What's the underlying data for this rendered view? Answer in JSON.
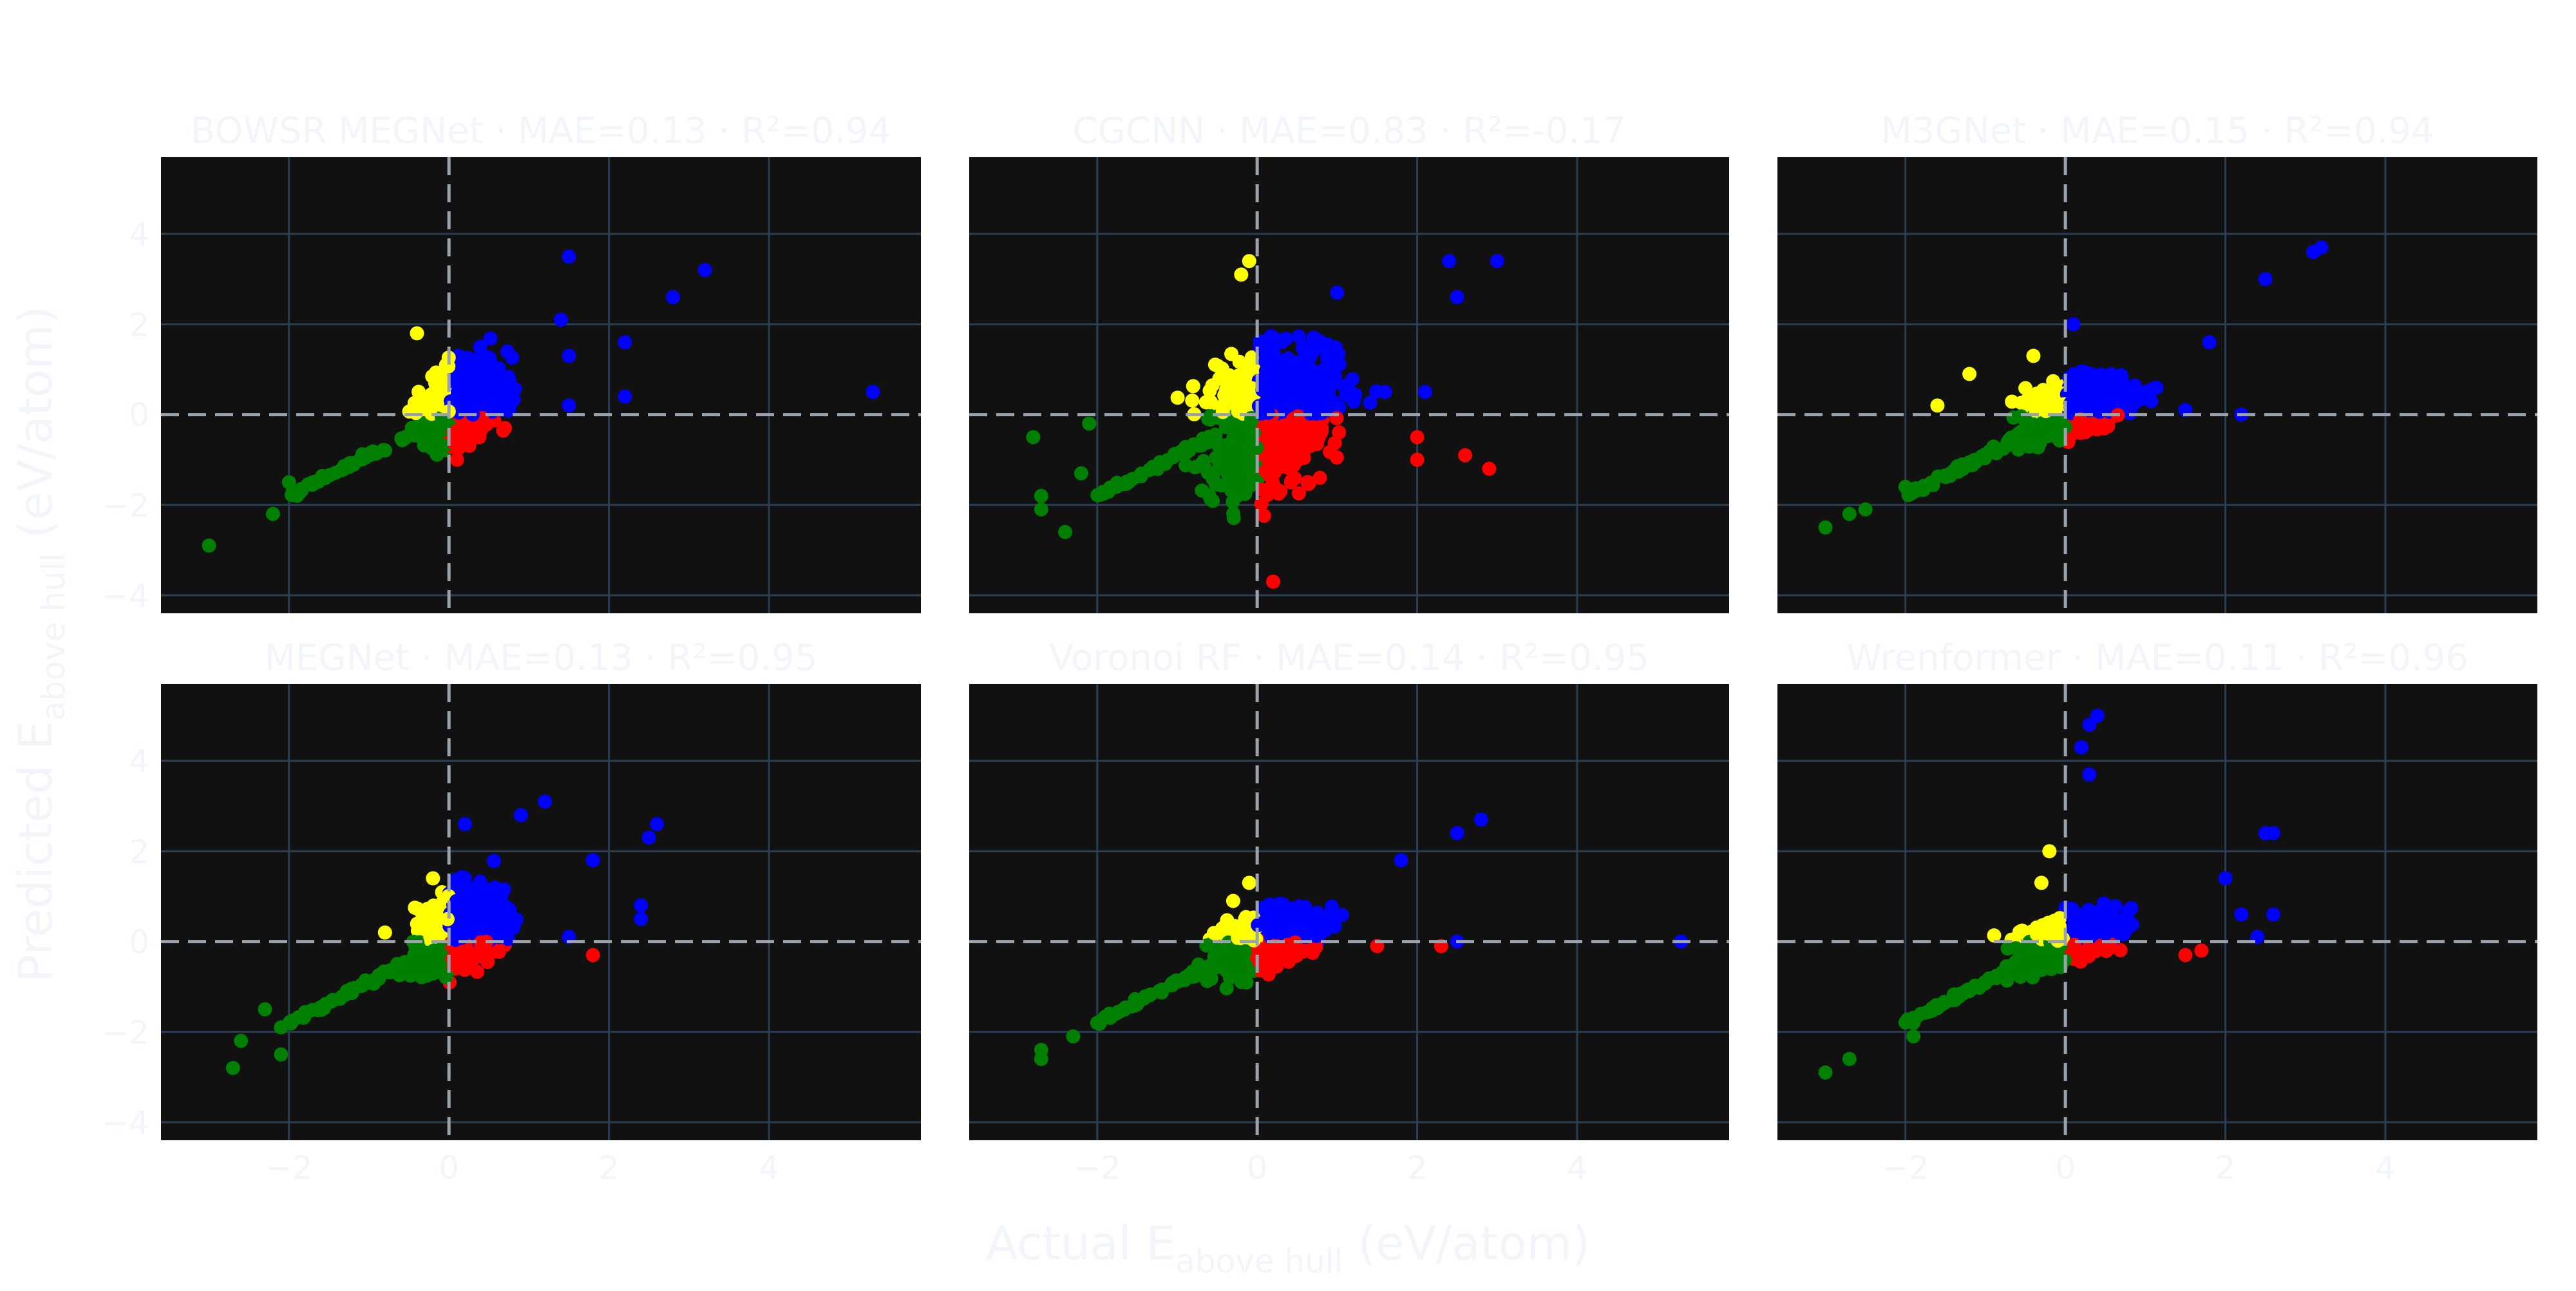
{
  "figure": {
    "xlabel_main": "Actual E",
    "xlabel_sub": "above hull",
    "xlabel_unit": " (eV/atom)",
    "ylabel_main": "Predicted E",
    "ylabel_sub": "above hull",
    "ylabel_unit": " (eV/atom)",
    "colors": {
      "plot_bg": "#111111",
      "grid": "#2a3f54",
      "text": "#f2f5fa",
      "zero_line": "#9aa3ad",
      "true_positive": "#0000ff",
      "false_negative": "#ffff00",
      "true_negative": "#008000",
      "false_positive": "#ff0000"
    }
  },
  "chart_data": [
    {
      "type": "scatter",
      "title": "BOWSR MEGNet · MAE=0.13 · R²=0.94",
      "xlim": [
        -3.6,
        5.9
      ],
      "ylim": [
        -4.4,
        5.7
      ],
      "xticks": [
        "−2",
        "0",
        "2",
        "4"
      ],
      "yticks": [
        "−4",
        "−2",
        "0",
        "2",
        "4"
      ],
      "outliers": [
        [
          -3.0,
          -2.9
        ],
        [
          -2.2,
          -2.2
        ],
        [
          -2.0,
          -1.5
        ],
        [
          -1.9,
          -1.8
        ],
        [
          1.5,
          3.5
        ],
        [
          2.8,
          2.6
        ],
        [
          3.2,
          3.2
        ],
        [
          2.2,
          1.6
        ],
        [
          2.2,
          0.4
        ],
        [
          1.5,
          1.3
        ],
        [
          1.5,
          0.2
        ],
        [
          1.4,
          2.1
        ],
        [
          5.3,
          0.5
        ],
        [
          0.1,
          -1.0
        ],
        [
          0.7,
          -0.3
        ],
        [
          -0.4,
          1.8
        ]
      ],
      "cluster": {
        "x_spread": [
          -0.8,
          1.2
        ],
        "pos_max": 2.2,
        "neg_min": -1.3
      }
    },
    {
      "type": "scatter",
      "title": "CGCNN · MAE=0.83 · R²=-0.17",
      "xlim": [
        -3.6,
        5.9
      ],
      "ylim": [
        -4.4,
        5.7
      ],
      "xticks": [
        "−2",
        "0",
        "2",
        "4"
      ],
      "yticks": [
        "−4",
        "−2",
        "0",
        "2",
        "4"
      ],
      "outliers": [
        [
          -2.8,
          -0.5
        ],
        [
          -2.7,
          -1.8
        ],
        [
          -2.7,
          -2.1
        ],
        [
          -2.4,
          -2.6
        ],
        [
          -2.1,
          -0.2
        ],
        [
          -2.2,
          -1.3
        ],
        [
          2.4,
          3.4
        ],
        [
          2.5,
          2.6
        ],
        [
          3.0,
          3.4
        ],
        [
          2.9,
          -1.2
        ],
        [
          2.6,
          -0.9
        ],
        [
          2.0,
          -0.5
        ],
        [
          2.0,
          -1.0
        ],
        [
          2.1,
          0.5
        ],
        [
          0.2,
          -3.7
        ],
        [
          -0.2,
          3.1
        ],
        [
          -0.1,
          3.4
        ],
        [
          1.0,
          2.7
        ],
        [
          1.6,
          0.5
        ]
      ],
      "cluster": {
        "x_spread": [
          -1.4,
          1.8
        ],
        "pos_max": 3.0,
        "neg_min": -3.5
      }
    },
    {
      "type": "scatter",
      "title": "M3GNet · MAE=0.15 · R²=0.94",
      "xlim": [
        -3.6,
        5.9
      ],
      "ylim": [
        -4.4,
        5.7
      ],
      "xticks": [
        "−2",
        "0",
        "2",
        "4"
      ],
      "yticks": [
        "−4",
        "−2",
        "0",
        "2",
        "4"
      ],
      "outliers": [
        [
          -3.0,
          -2.5
        ],
        [
          -2.7,
          -2.2
        ],
        [
          -2.5,
          -2.1
        ],
        [
          -2.0,
          -1.6
        ],
        [
          3.2,
          3.7
        ],
        [
          3.1,
          3.6
        ],
        [
          2.5,
          3.0
        ],
        [
          2.2,
          0.0
        ],
        [
          1.5,
          0.1
        ],
        [
          1.8,
          1.6
        ],
        [
          0.1,
          2.0
        ],
        [
          -1.6,
          0.2
        ],
        [
          -1.2,
          0.9
        ],
        [
          -0.4,
          1.3
        ]
      ],
      "cluster": {
        "x_spread": [
          -1.2,
          1.6
        ],
        "pos_max": 1.5,
        "neg_min": -0.9
      }
    },
    {
      "type": "scatter",
      "title": "MEGNet · MAE=0.13 · R²=0.95",
      "xlim": [
        -3.6,
        5.9
      ],
      "ylim": [
        -4.4,
        5.7
      ],
      "xticks": [
        "−2",
        "0",
        "2",
        "4"
      ],
      "yticks": [
        "−4",
        "−2",
        "0",
        "2",
        "4"
      ],
      "outliers": [
        [
          -2.7,
          -2.8
        ],
        [
          -2.6,
          -2.2
        ],
        [
          -2.1,
          -2.5
        ],
        [
          -2.1,
          -1.9
        ],
        [
          -2.3,
          -1.5
        ],
        [
          2.6,
          2.6
        ],
        [
          2.5,
          2.3
        ],
        [
          2.4,
          0.8
        ],
        [
          2.4,
          0.5
        ],
        [
          1.2,
          3.1
        ],
        [
          0.9,
          2.8
        ],
        [
          1.8,
          1.8
        ],
        [
          1.5,
          0.1
        ],
        [
          1.8,
          -0.3
        ],
        [
          0.2,
          2.6
        ],
        [
          -0.8,
          0.2
        ],
        [
          -0.2,
          1.4
        ]
      ],
      "cluster": {
        "x_spread": [
          -1.0,
          1.3
        ],
        "pos_max": 2.2,
        "neg_min": -1.2
      }
    },
    {
      "type": "scatter",
      "title": "Voronoi RF · MAE=0.14 · R²=0.95",
      "xlim": [
        -3.6,
        5.9
      ],
      "ylim": [
        -4.4,
        5.7
      ],
      "xticks": [
        "−2",
        "0",
        "2",
        "4"
      ],
      "yticks": [
        "−4",
        "−2",
        "0",
        "2",
        "4"
      ],
      "outliers": [
        [
          -2.7,
          -2.4
        ],
        [
          -2.7,
          -2.6
        ],
        [
          -2.3,
          -2.1
        ],
        [
          -2.0,
          -1.8
        ],
        [
          2.8,
          2.7
        ],
        [
          2.5,
          2.4
        ],
        [
          1.8,
          1.8
        ],
        [
          2.5,
          0.0
        ],
        [
          5.3,
          0.0
        ],
        [
          1.5,
          -0.1
        ],
        [
          2.3,
          -0.1
        ],
        [
          -0.1,
          1.3
        ],
        [
          -0.3,
          0.9
        ]
      ],
      "cluster": {
        "x_spread": [
          -1.2,
          1.5
        ],
        "pos_max": 1.2,
        "neg_min": -1.3
      }
    },
    {
      "type": "scatter",
      "title": "Wrenformer · MAE=0.11 · R²=0.96",
      "xlim": [
        -3.6,
        5.9
      ],
      "ylim": [
        -4.4,
        5.7
      ],
      "xticks": [
        "−2",
        "0",
        "2",
        "4"
      ],
      "yticks": [
        "−4",
        "−2",
        "0",
        "2",
        "4"
      ],
      "outliers": [
        [
          -3.0,
          -2.9
        ],
        [
          -2.7,
          -2.6
        ],
        [
          -1.9,
          -1.8
        ],
        [
          -1.9,
          -2.1
        ],
        [
          0.4,
          5.0
        ],
        [
          0.3,
          4.8
        ],
        [
          0.2,
          4.3
        ],
        [
          0.3,
          3.7
        ],
        [
          2.5,
          2.4
        ],
        [
          2.6,
          2.4
        ],
        [
          2.0,
          1.4
        ],
        [
          2.2,
          0.6
        ],
        [
          2.6,
          0.6
        ],
        [
          2.4,
          0.1
        ],
        [
          1.7,
          -0.2
        ],
        [
          1.5,
          -0.3
        ],
        [
          -0.2,
          2.0
        ],
        [
          -0.3,
          1.3
        ]
      ],
      "cluster": {
        "x_spread": [
          -1.2,
          1.3
        ],
        "pos_max": 1.2,
        "neg_min": -1.0
      }
    }
  ]
}
